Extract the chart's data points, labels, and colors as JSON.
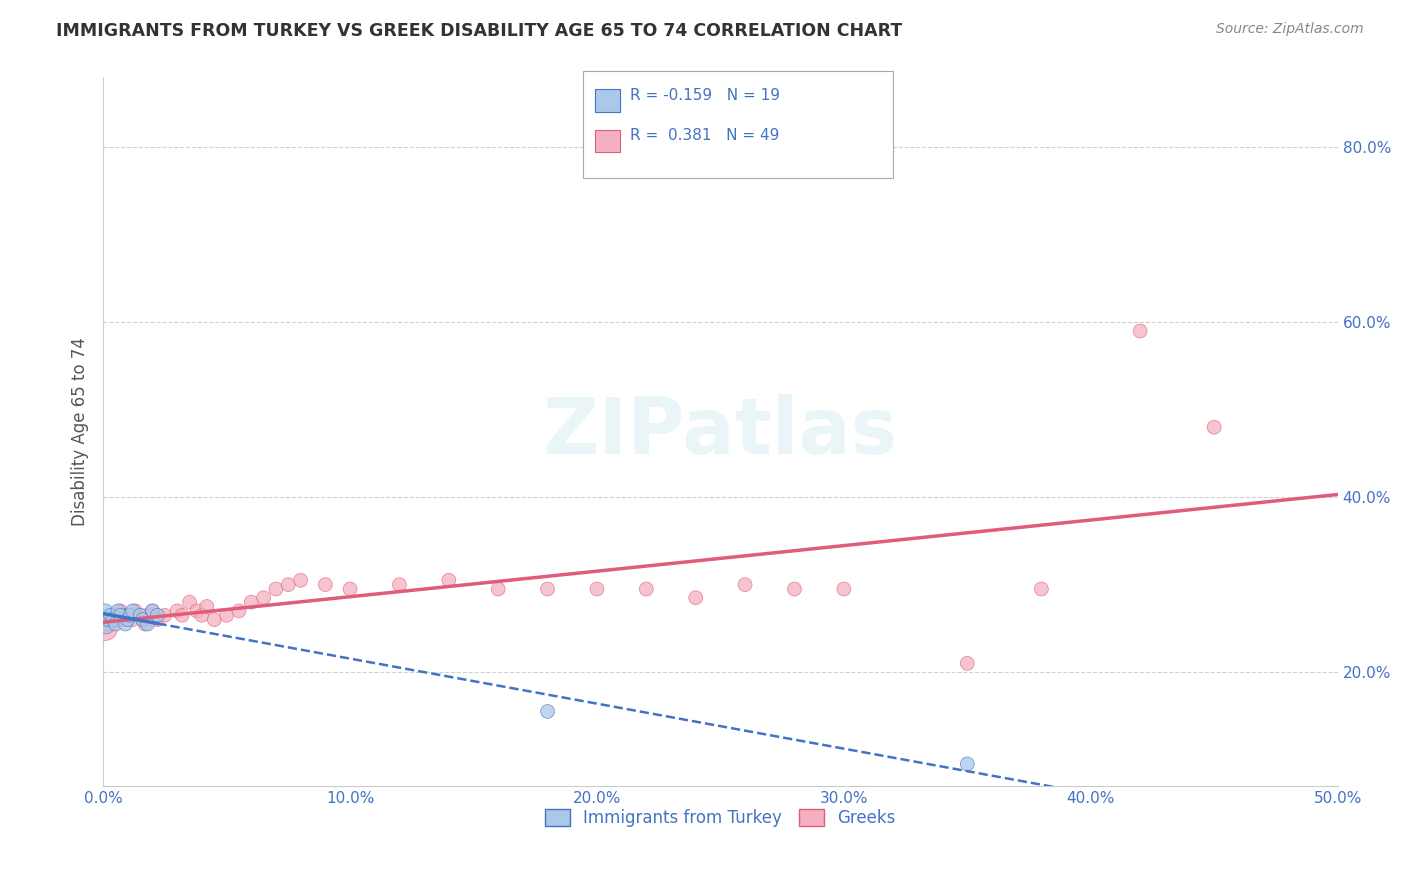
{
  "title": "IMMIGRANTS FROM TURKEY VS GREEK DISABILITY AGE 65 TO 74 CORRELATION CHART",
  "source": "Source: ZipAtlas.com",
  "ylabel": "Disability Age 65 to 74",
  "legend_label1": "Immigrants from Turkey",
  "legend_label2": "Greeks",
  "r1": -0.159,
  "n1": 19,
  "r2": 0.381,
  "n2": 49,
  "xlim": [
    0.0,
    0.5
  ],
  "ylim": [
    0.07,
    0.88
  ],
  "yticks": [
    0.2,
    0.4,
    0.6,
    0.8
  ],
  "ytick_labels": [
    "20.0%",
    "40.0%",
    "60.0%",
    "80.0%"
  ],
  "xticks": [
    0.0,
    0.1,
    0.2,
    0.3,
    0.4,
    0.5
  ],
  "xtick_labels": [
    "0.0%",
    "10.0%",
    "20.0%",
    "30.0%",
    "40.0%",
    "50.0%"
  ],
  "color_turkey": "#aac8e8",
  "color_greek": "#f4b0c0",
  "line_color_turkey": "#4472c4",
  "line_color_greek": "#e05c7a",
  "background_color": "#ffffff",
  "turkey_x": [
    0.001,
    0.001,
    0.002,
    0.003,
    0.004,
    0.005,
    0.006,
    0.007,
    0.009,
    0.01,
    0.011,
    0.012,
    0.015,
    0.016,
    0.018,
    0.02,
    0.022,
    0.18,
    0.35
  ],
  "turkey_y": [
    0.255,
    0.27,
    0.26,
    0.265,
    0.26,
    0.255,
    0.27,
    0.265,
    0.255,
    0.26,
    0.265,
    0.27,
    0.265,
    0.26,
    0.255,
    0.27,
    0.265,
    0.155,
    0.095
  ],
  "turkey_sizes": [
    200,
    100,
    100,
    100,
    100,
    100,
    100,
    100,
    100,
    100,
    100,
    100,
    100,
    100,
    100,
    100,
    100,
    100,
    100
  ],
  "greek_x": [
    0.001,
    0.002,
    0.003,
    0.004,
    0.005,
    0.006,
    0.007,
    0.008,
    0.009,
    0.01,
    0.012,
    0.013,
    0.015,
    0.016,
    0.017,
    0.018,
    0.02,
    0.022,
    0.025,
    0.03,
    0.032,
    0.035,
    0.038,
    0.04,
    0.042,
    0.045,
    0.05,
    0.055,
    0.06,
    0.065,
    0.07,
    0.075,
    0.08,
    0.09,
    0.1,
    0.12,
    0.14,
    0.16,
    0.18,
    0.2,
    0.22,
    0.24,
    0.26,
    0.28,
    0.3,
    0.35,
    0.38,
    0.42,
    0.45
  ],
  "greek_y": [
    0.25,
    0.255,
    0.26,
    0.265,
    0.26,
    0.265,
    0.27,
    0.26,
    0.265,
    0.265,
    0.26,
    0.27,
    0.265,
    0.26,
    0.255,
    0.265,
    0.27,
    0.26,
    0.265,
    0.27,
    0.265,
    0.28,
    0.27,
    0.265,
    0.275,
    0.26,
    0.265,
    0.27,
    0.28,
    0.285,
    0.295,
    0.3,
    0.305,
    0.3,
    0.295,
    0.3,
    0.305,
    0.295,
    0.295,
    0.295,
    0.295,
    0.285,
    0.3,
    0.295,
    0.295,
    0.21,
    0.295,
    0.59,
    0.48
  ],
  "greek_sizes": [
    300,
    100,
    100,
    100,
    100,
    100,
    100,
    100,
    100,
    100,
    100,
    100,
    100,
    100,
    100,
    100,
    100,
    100,
    100,
    100,
    100,
    100,
    100,
    100,
    100,
    100,
    100,
    100,
    100,
    100,
    100,
    100,
    100,
    100,
    100,
    100,
    100,
    100,
    100,
    100,
    100,
    100,
    100,
    100,
    100,
    100,
    100,
    100,
    100
  ]
}
